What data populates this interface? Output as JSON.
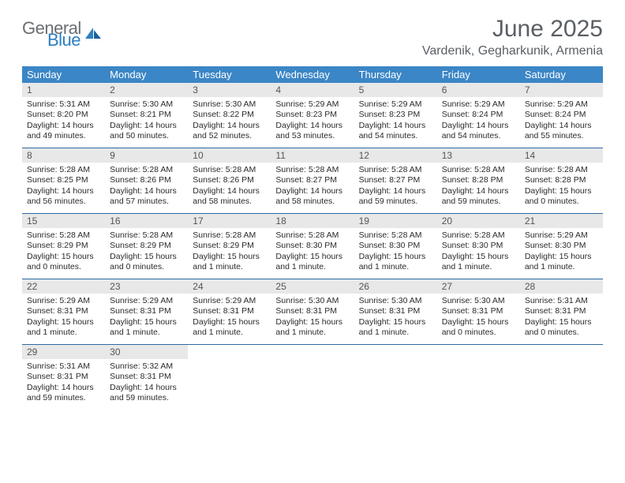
{
  "logo": {
    "general": "General",
    "blue": "Blue"
  },
  "title": "June 2025",
  "location": "Vardenik, Gegharkunik, Armenia",
  "colors": {
    "header_bg": "#3b86c6",
    "header_text": "#ffffff",
    "daynum_bg": "#e8e8e8",
    "week_border": "#2d6aa3",
    "title_color": "#5a5f65",
    "logo_gray": "#6a6f74",
    "logo_blue": "#2d7fc1"
  },
  "dow": [
    "Sunday",
    "Monday",
    "Tuesday",
    "Wednesday",
    "Thursday",
    "Friday",
    "Saturday"
  ],
  "weeks": [
    [
      {
        "n": "1",
        "sr": "Sunrise: 5:31 AM",
        "ss": "Sunset: 8:20 PM",
        "d1": "Daylight: 14 hours",
        "d2": "and 49 minutes."
      },
      {
        "n": "2",
        "sr": "Sunrise: 5:30 AM",
        "ss": "Sunset: 8:21 PM",
        "d1": "Daylight: 14 hours",
        "d2": "and 50 minutes."
      },
      {
        "n": "3",
        "sr": "Sunrise: 5:30 AM",
        "ss": "Sunset: 8:22 PM",
        "d1": "Daylight: 14 hours",
        "d2": "and 52 minutes."
      },
      {
        "n": "4",
        "sr": "Sunrise: 5:29 AM",
        "ss": "Sunset: 8:23 PM",
        "d1": "Daylight: 14 hours",
        "d2": "and 53 minutes."
      },
      {
        "n": "5",
        "sr": "Sunrise: 5:29 AM",
        "ss": "Sunset: 8:23 PM",
        "d1": "Daylight: 14 hours",
        "d2": "and 54 minutes."
      },
      {
        "n": "6",
        "sr": "Sunrise: 5:29 AM",
        "ss": "Sunset: 8:24 PM",
        "d1": "Daylight: 14 hours",
        "d2": "and 54 minutes."
      },
      {
        "n": "7",
        "sr": "Sunrise: 5:29 AM",
        "ss": "Sunset: 8:24 PM",
        "d1": "Daylight: 14 hours",
        "d2": "and 55 minutes."
      }
    ],
    [
      {
        "n": "8",
        "sr": "Sunrise: 5:28 AM",
        "ss": "Sunset: 8:25 PM",
        "d1": "Daylight: 14 hours",
        "d2": "and 56 minutes."
      },
      {
        "n": "9",
        "sr": "Sunrise: 5:28 AM",
        "ss": "Sunset: 8:26 PM",
        "d1": "Daylight: 14 hours",
        "d2": "and 57 minutes."
      },
      {
        "n": "10",
        "sr": "Sunrise: 5:28 AM",
        "ss": "Sunset: 8:26 PM",
        "d1": "Daylight: 14 hours",
        "d2": "and 58 minutes."
      },
      {
        "n": "11",
        "sr": "Sunrise: 5:28 AM",
        "ss": "Sunset: 8:27 PM",
        "d1": "Daylight: 14 hours",
        "d2": "and 58 minutes."
      },
      {
        "n": "12",
        "sr": "Sunrise: 5:28 AM",
        "ss": "Sunset: 8:27 PM",
        "d1": "Daylight: 14 hours",
        "d2": "and 59 minutes."
      },
      {
        "n": "13",
        "sr": "Sunrise: 5:28 AM",
        "ss": "Sunset: 8:28 PM",
        "d1": "Daylight: 14 hours",
        "d2": "and 59 minutes."
      },
      {
        "n": "14",
        "sr": "Sunrise: 5:28 AM",
        "ss": "Sunset: 8:28 PM",
        "d1": "Daylight: 15 hours",
        "d2": "and 0 minutes."
      }
    ],
    [
      {
        "n": "15",
        "sr": "Sunrise: 5:28 AM",
        "ss": "Sunset: 8:29 PM",
        "d1": "Daylight: 15 hours",
        "d2": "and 0 minutes."
      },
      {
        "n": "16",
        "sr": "Sunrise: 5:28 AM",
        "ss": "Sunset: 8:29 PM",
        "d1": "Daylight: 15 hours",
        "d2": "and 0 minutes."
      },
      {
        "n": "17",
        "sr": "Sunrise: 5:28 AM",
        "ss": "Sunset: 8:29 PM",
        "d1": "Daylight: 15 hours",
        "d2": "and 1 minute."
      },
      {
        "n": "18",
        "sr": "Sunrise: 5:28 AM",
        "ss": "Sunset: 8:30 PM",
        "d1": "Daylight: 15 hours",
        "d2": "and 1 minute."
      },
      {
        "n": "19",
        "sr": "Sunrise: 5:28 AM",
        "ss": "Sunset: 8:30 PM",
        "d1": "Daylight: 15 hours",
        "d2": "and 1 minute."
      },
      {
        "n": "20",
        "sr": "Sunrise: 5:28 AM",
        "ss": "Sunset: 8:30 PM",
        "d1": "Daylight: 15 hours",
        "d2": "and 1 minute."
      },
      {
        "n": "21",
        "sr": "Sunrise: 5:29 AM",
        "ss": "Sunset: 8:30 PM",
        "d1": "Daylight: 15 hours",
        "d2": "and 1 minute."
      }
    ],
    [
      {
        "n": "22",
        "sr": "Sunrise: 5:29 AM",
        "ss": "Sunset: 8:31 PM",
        "d1": "Daylight: 15 hours",
        "d2": "and 1 minute."
      },
      {
        "n": "23",
        "sr": "Sunrise: 5:29 AM",
        "ss": "Sunset: 8:31 PM",
        "d1": "Daylight: 15 hours",
        "d2": "and 1 minute."
      },
      {
        "n": "24",
        "sr": "Sunrise: 5:29 AM",
        "ss": "Sunset: 8:31 PM",
        "d1": "Daylight: 15 hours",
        "d2": "and 1 minute."
      },
      {
        "n": "25",
        "sr": "Sunrise: 5:30 AM",
        "ss": "Sunset: 8:31 PM",
        "d1": "Daylight: 15 hours",
        "d2": "and 1 minute."
      },
      {
        "n": "26",
        "sr": "Sunrise: 5:30 AM",
        "ss": "Sunset: 8:31 PM",
        "d1": "Daylight: 15 hours",
        "d2": "and 1 minute."
      },
      {
        "n": "27",
        "sr": "Sunrise: 5:30 AM",
        "ss": "Sunset: 8:31 PM",
        "d1": "Daylight: 15 hours",
        "d2": "and 0 minutes."
      },
      {
        "n": "28",
        "sr": "Sunrise: 5:31 AM",
        "ss": "Sunset: 8:31 PM",
        "d1": "Daylight: 15 hours",
        "d2": "and 0 minutes."
      }
    ],
    [
      {
        "n": "29",
        "sr": "Sunrise: 5:31 AM",
        "ss": "Sunset: 8:31 PM",
        "d1": "Daylight: 14 hours",
        "d2": "and 59 minutes."
      },
      {
        "n": "30",
        "sr": "Sunrise: 5:32 AM",
        "ss": "Sunset: 8:31 PM",
        "d1": "Daylight: 14 hours",
        "d2": "and 59 minutes."
      },
      null,
      null,
      null,
      null,
      null
    ]
  ]
}
